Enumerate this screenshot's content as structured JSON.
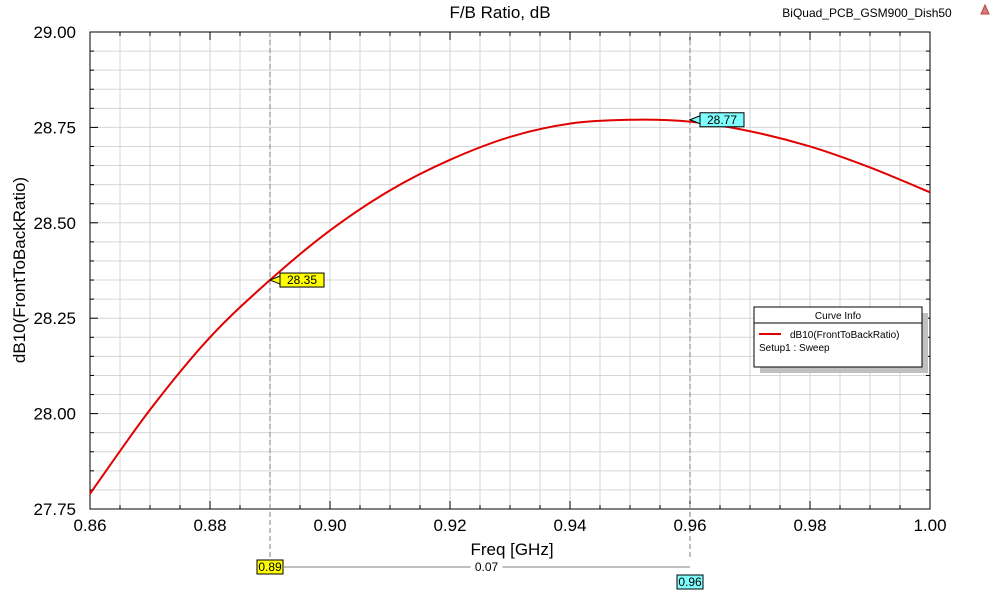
{
  "window": {
    "project_name": "BiQuad_PCB_GSM900_Dish50",
    "corner_icon": "warning-triangle-icon"
  },
  "chart_data": {
    "type": "line",
    "title": "F/B Ratio, dB",
    "xlabel": "Freq [GHz]",
    "ylabel": "dB10(FrontToBackRatio)",
    "xlim": [
      0.86,
      1.0
    ],
    "ylim": [
      27.75,
      29.0
    ],
    "x_ticks": [
      "0.86",
      "0.88",
      "0.90",
      "0.92",
      "0.94",
      "0.96",
      "0.98",
      "1.00"
    ],
    "y_ticks": [
      "27.75",
      "28.00",
      "28.25",
      "28.50",
      "28.75",
      "29.00"
    ],
    "grid": true,
    "series": [
      {
        "name": "dB10(FrontToBackRatio)",
        "color": "#e00000",
        "x": [
          0.86,
          0.87,
          0.88,
          0.89,
          0.9,
          0.91,
          0.92,
          0.93,
          0.94,
          0.95,
          0.96,
          0.97,
          0.98,
          0.99,
          1.0
        ],
        "y": [
          27.79,
          28.01,
          28.2,
          28.35,
          28.48,
          28.585,
          28.665,
          28.725,
          28.76,
          28.77,
          28.765,
          28.74,
          28.7,
          28.645,
          28.58
        ]
      }
    ],
    "markers": [
      {
        "x": 0.89,
        "y": 28.35,
        "label": "28.35",
        "x_label": "0.89",
        "color": "#ffff00"
      },
      {
        "x": 0.96,
        "y": 28.77,
        "label": "28.77",
        "x_label": "0.96",
        "color": "#80ffff"
      }
    ],
    "delta_label": "0.07",
    "legend": {
      "title": "Curve Info",
      "entries": [
        "dB10(FrontToBackRatio)"
      ],
      "setup": "Setup1 : Sweep",
      "position": "right"
    }
  }
}
